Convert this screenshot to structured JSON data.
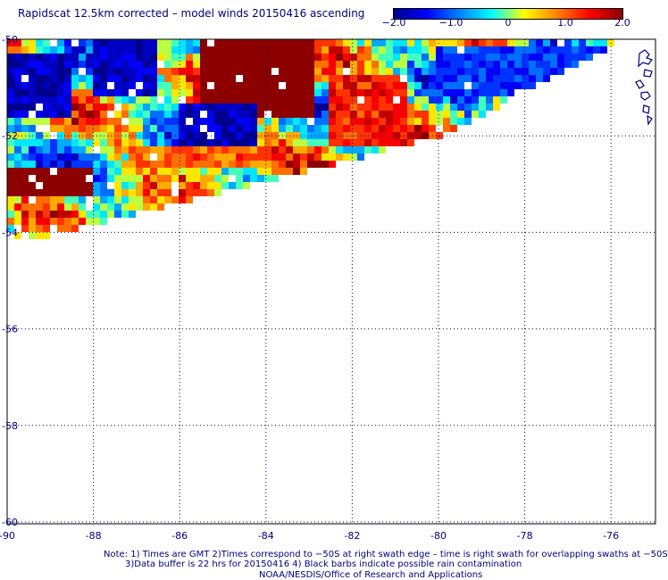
{
  "title": "Rapidscat 12.5km corrected – model winds 20150416 ascending",
  "colorbar": {
    "ticks": [
      "−2.0",
      "−1.0",
      "0",
      "1.0",
      "2.0"
    ],
    "tick_values": [
      -2.0,
      -1.0,
      0,
      1.0,
      2.0
    ],
    "range": [
      -2.0,
      2.0
    ],
    "colors": [
      "#00008c",
      "#0000ff",
      "#0080ff",
      "#00ffff",
      "#ffff00",
      "#ff8000",
      "#ff0000",
      "#8c0000"
    ]
  },
  "axes": {
    "lon_ticks": [
      "-90",
      "-88",
      "-86",
      "-84",
      "-82",
      "-80",
      "-78",
      "-76"
    ],
    "lon_values": [
      -90,
      -88,
      -86,
      -84,
      -82,
      -80,
      -78,
      -76
    ],
    "lat_ticks": [
      "-50",
      "-52",
      "-54",
      "-56",
      "-58",
      "-60"
    ],
    "lat_values": [
      -50,
      -52,
      -54,
      -56,
      -58,
      -60
    ],
    "lon_range": [
      -90,
      -75.5
    ],
    "lat_range": [
      -50,
      -60
    ],
    "gridlines": true
  },
  "notes": {
    "line1": "Note: 1) Times are GMT 2)Times correspond to −50S at right swath edge – time is right swath for overlapping swaths at −50S",
    "line2": "3)Data buffer is 22 hrs for 20150416 4) Black barbs indicate possible rain contamination",
    "line3": "NOAA/NESDIS/Office of Research and Applications"
  },
  "chart_data": {
    "type": "heatmap",
    "title": "Rapidscat 12.5km corrected – model winds 20150416 ascending",
    "xlabel": "",
    "ylabel": "",
    "xlim": [
      -90,
      -75.5
    ],
    "ylim": [
      -60,
      -50
    ],
    "value_range": [
      -2.0,
      2.0
    ],
    "swath": {
      "description_points_lon_lat": [
        [
          -90,
          -50
        ],
        [
          -75.7,
          -50
        ],
        [
          -79.9,
          -52.0
        ],
        [
          -84.2,
          -53.0
        ],
        [
          -87.8,
          -53.8
        ],
        [
          -90,
          -54.3
        ]
      ]
    },
    "regions": [
      {
        "lon": [
          -85.6,
          -82.8
        ],
        "lat": [
          -50.0,
          -51.6
        ],
        "value": 2.0
      },
      {
        "lon": [
          -90.0,
          -88.0
        ],
        "lat": [
          -52.6,
          -53.3
        ],
        "value": 2.0
      },
      {
        "lon": [
          -83.0,
          -82.6
        ],
        "lat": [
          -52.5,
          -52.9
        ],
        "value": 2.0
      },
      {
        "lon": [
          -82.5,
          -80.8
        ],
        "lat": [
          -50.8,
          -52.2
        ],
        "value": 1.4
      },
      {
        "lon": [
          -90.0,
          -88.5
        ],
        "lat": [
          -50.3,
          -51.6
        ],
        "value": -1.8
      },
      {
        "lon": [
          -88.0,
          -86.5
        ],
        "lat": [
          -50.0,
          -51.2
        ],
        "value": -1.7
      },
      {
        "lon": [
          -86.0,
          -84.2
        ],
        "lat": [
          -51.3,
          -52.2
        ],
        "value": -1.8
      },
      {
        "lon": [
          -80.0,
          -75.8
        ],
        "lat": [
          -50.2,
          -51.2
        ],
        "value": -1.2
      },
      {
        "lon": [
          -87.2,
          -84.0
        ],
        "lat": [
          -52.2,
          -52.7
        ],
        "value": 1.0
      }
    ]
  }
}
